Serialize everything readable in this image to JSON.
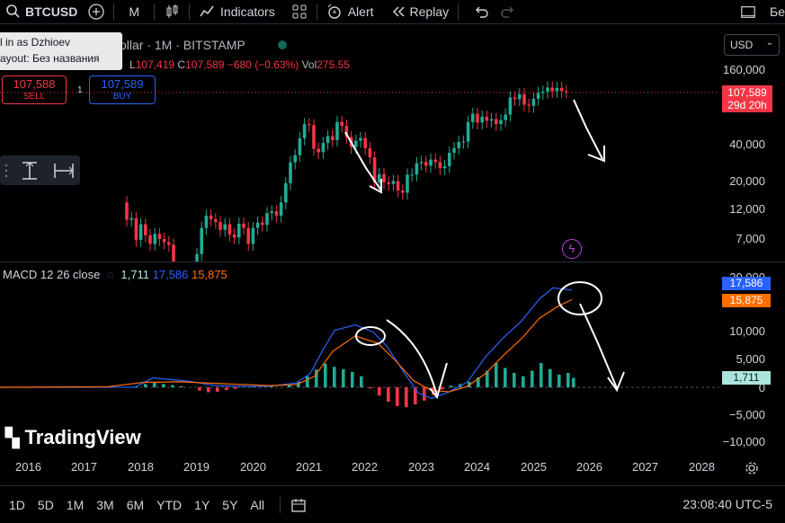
{
  "toolbar": {
    "symbol": "BTCUSD",
    "interval": "M",
    "indicators_label": "Indicators",
    "alert_label": "Alert",
    "replay_label": "Replay",
    "right_text": "Бе"
  },
  "legend": {
    "title": "ollar · 1M · BITSTAMP",
    "low_label": "L",
    "low_value": "107,419",
    "close_label": "C",
    "close_value": "107,589",
    "change": "−680 (−0.63%)",
    "vol_label": "Vol",
    "vol_value": "275.55"
  },
  "tooltip": {
    "line1": "l in as Dzhioev",
    "line2": "ayout: Без названия"
  },
  "trade": {
    "sell_price": "107,588",
    "sell_label": "SELL",
    "spread": "1",
    "buy_price": "107,589",
    "buy_label": "BUY"
  },
  "currency": "USD",
  "price_axis": [
    "160,000",
    "40,000",
    "20,000",
    "12,000",
    "7,000"
  ],
  "price_tag": {
    "price": "107,589",
    "countdown": "29d 20h"
  },
  "macd": {
    "name": "MACD 12 26 close",
    "hist": "1,711",
    "macd_line": "17,586",
    "signal": "15,875"
  },
  "macd_axis": [
    "20,000",
    "10,000",
    "5,000",
    "0",
    "−5,000",
    "−10,000"
  ],
  "macd_tags": {
    "macd": "17,586",
    "signal": "15,875",
    "hist": "1,711"
  },
  "colors": {
    "up": "#22ab94",
    "down": "#f23645",
    "macd": "#2962ff",
    "signal": "#ff6d00",
    "hist_up": "#22ab94",
    "hist_up_light": "#ace5dc",
    "hist_down": "#f23645",
    "hist_down_light": "#fccbcd"
  },
  "brand": "TradingView",
  "years": [
    "2016",
    "2017",
    "2018",
    "2019",
    "2020",
    "2021",
    "2022",
    "2023",
    "2024",
    "2025",
    "2026",
    "2027",
    "2028"
  ],
  "timeframes": [
    "1D",
    "5D",
    "1M",
    "3M",
    "6M",
    "YTD",
    "1Y",
    "5Y",
    "All"
  ],
  "clock": "23:08:40 UTC-5"
}
